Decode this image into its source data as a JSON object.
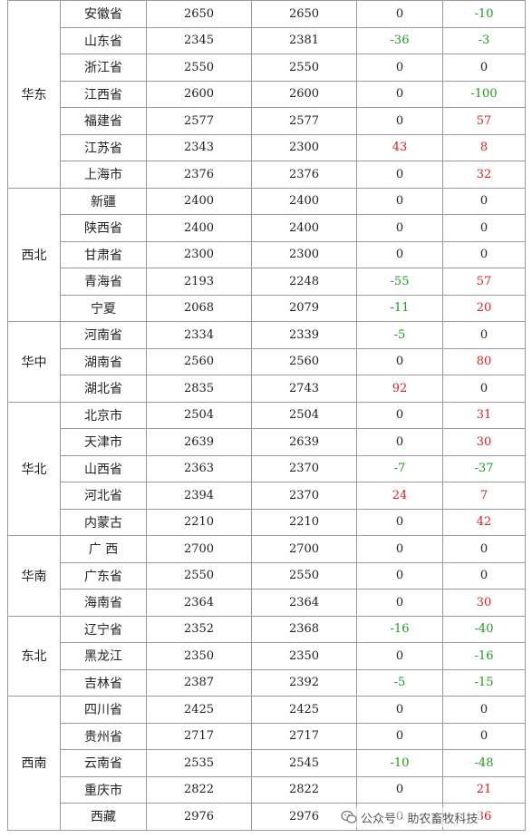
{
  "regions": [
    {
      "name": "华东",
      "rows": [
        {
          "province": "安徽省",
          "col1": "2650",
          "col2": "2650",
          "col3": "0",
          "col4": "-10"
        },
        {
          "province": "山东省",
          "col1": "2345",
          "col2": "2381",
          "col3": "-36",
          "col4": "-3"
        },
        {
          "province": "浙江省",
          "col1": "2550",
          "col2": "2550",
          "col3": "0",
          "col4": "0"
        },
        {
          "province": "江西省",
          "col1": "2600",
          "col2": "2600",
          "col3": "0",
          "col4": "-100"
        },
        {
          "province": "福建省",
          "col1": "2577",
          "col2": "2577",
          "col3": "0",
          "col4": "57"
        },
        {
          "province": "江苏省",
          "col1": "2343",
          "col2": "2300",
          "col3": "43",
          "col4": "8"
        },
        {
          "province": "上海市",
          "col1": "2376",
          "col2": "2376",
          "col3": "0",
          "col4": "32"
        }
      ]
    },
    {
      "name": "西北",
      "rows": [
        {
          "province": "新疆",
          "col1": "2400",
          "col2": "2400",
          "col3": "0",
          "col4": "0"
        },
        {
          "province": "陕西省",
          "col1": "2400",
          "col2": "2400",
          "col3": "0",
          "col4": "0"
        },
        {
          "province": "甘肃省",
          "col1": "2300",
          "col2": "2300",
          "col3": "0",
          "col4": "0"
        },
        {
          "province": "青海省",
          "col1": "2193",
          "col2": "2248",
          "col3": "-55",
          "col4": "57"
        },
        {
          "province": "宁夏",
          "col1": "2068",
          "col2": "2079",
          "col3": "-11",
          "col4": "20"
        }
      ]
    },
    {
      "name": "华中",
      "rows": [
        {
          "province": "河南省",
          "col1": "2334",
          "col2": "2339",
          "col3": "-5",
          "col4": "0"
        },
        {
          "province": "湖南省",
          "col1": "2560",
          "col2": "2560",
          "col3": "0",
          "col4": "80"
        },
        {
          "province": "湖北省",
          "col1": "2835",
          "col2": "2743",
          "col3": "92",
          "col4": "0"
        }
      ]
    },
    {
      "name": "华北",
      "rows": [
        {
          "province": "北京市",
          "col1": "2504",
          "col2": "2504",
          "col3": "0",
          "col4": "31"
        },
        {
          "province": "天津市",
          "col1": "2639",
          "col2": "2639",
          "col3": "0",
          "col4": "30"
        },
        {
          "province": "山西省",
          "col1": "2363",
          "col2": "2370",
          "col3": "-7",
          "col4": "-37"
        },
        {
          "province": "河北省",
          "col1": "2394",
          "col2": "2370",
          "col3": "24",
          "col4": "7"
        },
        {
          "province": "内蒙古",
          "col1": "2210",
          "col2": "2210",
          "col3": "0",
          "col4": "42"
        }
      ]
    },
    {
      "name": "华南",
      "rows": [
        {
          "province": "广 西",
          "col1": "2700",
          "col2": "2700",
          "col3": "0",
          "col4": "0"
        },
        {
          "province": "广东省",
          "col1": "2550",
          "col2": "2550",
          "col3": "0",
          "col4": "0"
        },
        {
          "province": "海南省",
          "col1": "2364",
          "col2": "2364",
          "col3": "0",
          "col4": "30"
        }
      ]
    },
    {
      "name": "东北",
      "rows": [
        {
          "province": "辽宁省",
          "col1": "2352",
          "col2": "2368",
          "col3": "-16",
          "col4": "-40"
        },
        {
          "province": "黑龙江",
          "col1": "2350",
          "col2": "2350",
          "col3": "0",
          "col4": "-16"
        },
        {
          "province": "吉林省",
          "col1": "2387",
          "col2": "2392",
          "col3": "-5",
          "col4": "-15"
        }
      ]
    },
    {
      "name": "西南",
      "rows": [
        {
          "province": "四川省",
          "col1": "2425",
          "col2": "2425",
          "col3": "0",
          "col4": "0"
        },
        {
          "province": "贵州省",
          "col1": "2717",
          "col2": "2717",
          "col3": "0",
          "col4": "0"
        },
        {
          "province": "云南省",
          "col1": "2535",
          "col2": "2545",
          "col3": "-10",
          "col4": "-48"
        },
        {
          "province": "重庆市",
          "col1": "2822",
          "col2": "2822",
          "col3": "0",
          "col4": "21"
        },
        {
          "province": "西藏",
          "col1": "2976",
          "col2": "2976",
          "col3": "0",
          "col4": "36"
        }
      ]
    }
  ],
  "colors": {
    "positive": "#e02020",
    "negative": "#1e9a1e",
    "neutral": "#222222"
  },
  "watermark": {
    "icon": "wechat-icon",
    "text": "公众号 · 助农畜牧科技"
  }
}
